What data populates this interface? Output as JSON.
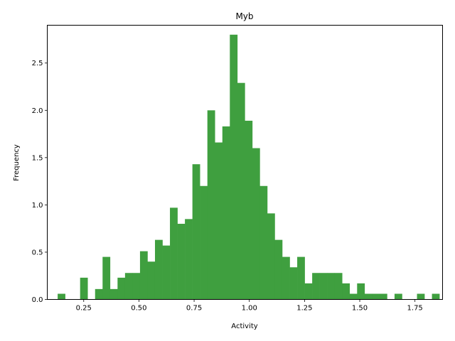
{
  "chart_data": {
    "type": "bar",
    "title": "Myb",
    "xlabel": "Activity",
    "ylabel": "Frequency",
    "bar_color": "#3f9f3f",
    "xlim": [
      0.085,
      1.875
    ],
    "ylim": [
      0,
      2.9
    ],
    "grid": false,
    "legend": "none",
    "x_ticks": [
      {
        "value": 0.25,
        "label": "0.25"
      },
      {
        "value": 0.5,
        "label": "0.50"
      },
      {
        "value": 0.75,
        "label": "0.75"
      },
      {
        "value": 1.0,
        "label": "1.00"
      },
      {
        "value": 1.25,
        "label": "1.25"
      },
      {
        "value": 1.5,
        "label": "1.50"
      },
      {
        "value": 1.75,
        "label": "1.75"
      }
    ],
    "y_ticks": [
      {
        "value": 0.0,
        "label": "0.0"
      },
      {
        "value": 0.5,
        "label": "0.5"
      },
      {
        "value": 1.0,
        "label": "1.0"
      },
      {
        "value": 1.5,
        "label": "1.5"
      },
      {
        "value": 2.0,
        "label": "2.0"
      },
      {
        "value": 2.5,
        "label": "2.5"
      }
    ],
    "bin_start": 0.132,
    "bin_width": 0.0339,
    "values": [
      0.06,
      0,
      0,
      0.23,
      0,
      0.11,
      0.45,
      0.11,
      0.23,
      0.28,
      0.28,
      0.51,
      0.4,
      0.63,
      0.57,
      0.97,
      0.8,
      0.85,
      1.43,
      1.2,
      2.0,
      1.66,
      1.83,
      2.8,
      2.29,
      1.89,
      1.6,
      1.2,
      0.91,
      0.63,
      0.45,
      0.34,
      0.45,
      0.17,
      0.28,
      0.28,
      0.28,
      0.28,
      0.17,
      0.06,
      0.17,
      0.06,
      0.06,
      0.06,
      0,
      0.06,
      0,
      0,
      0.06,
      0,
      0.06
    ]
  }
}
